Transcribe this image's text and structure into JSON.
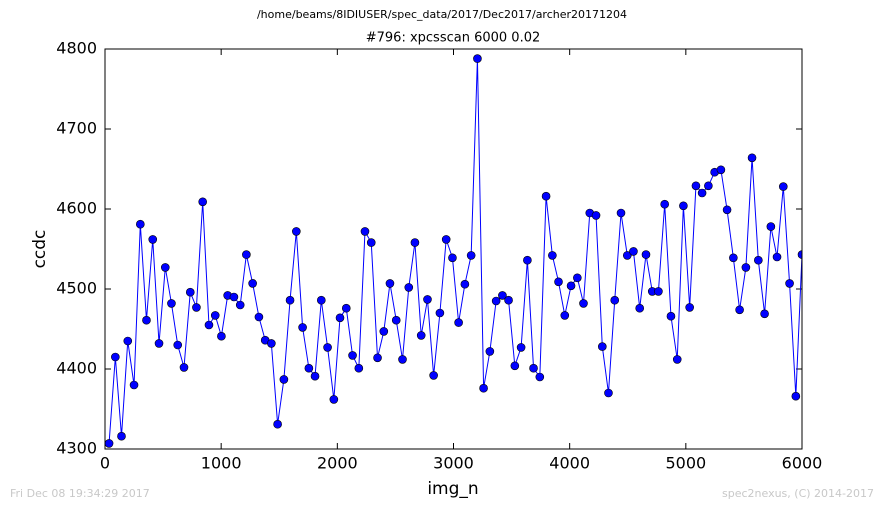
{
  "chart_data": {
    "type": "line",
    "suptitle": "/home/beams/8IDIUSER/spec_data/2017/Dec2017/archer20171204",
    "title": "#796: xpcsscan 6000 0.02",
    "x_label": "img_n",
    "y_label": "ccdc",
    "footer_left": "Fri Dec 08 19:34:29 2017",
    "footer_right": "spec2nexus, (C) 2014-2017",
    "xlim": [
      0,
      6000
    ],
    "ylim": [
      4300,
      4800
    ],
    "xticks": [
      0,
      1000,
      2000,
      3000,
      4000,
      5000,
      6000
    ],
    "yticks": [
      4300,
      4400,
      4500,
      4600,
      4700,
      4800
    ],
    "color": "#0000ff",
    "x": [
      35,
      89,
      142,
      196,
      250,
      304,
      357,
      411,
      465,
      519,
      572,
      626,
      680,
      734,
      787,
      841,
      895,
      949,
      1002,
      1056,
      1110,
      1164,
      1217,
      1271,
      1325,
      1379,
      1432,
      1486,
      1540,
      1593,
      1647,
      1701,
      1755,
      1808,
      1862,
      1916,
      1970,
      2023,
      2077,
      2131,
      2185,
      2238,
      2292,
      2346,
      2400,
      2453,
      2507,
      2561,
      2615,
      2668,
      2722,
      2776,
      2829,
      2883,
      2937,
      2991,
      3044,
      3098,
      3152,
      3206,
      3259,
      3313,
      3367,
      3421,
      3474,
      3528,
      3582,
      3636,
      3689,
      3743,
      3797,
      3851,
      3904,
      3958,
      4012,
      4066,
      4119,
      4173,
      4227,
      4281,
      4334,
      4388,
      4442,
      4496,
      4549,
      4603,
      4657,
      4711,
      4764,
      4818,
      4872,
      4926,
      4979,
      5033,
      5087,
      5140,
      5194,
      5248,
      5302,
      5355,
      5409,
      5463,
      5517,
      5570,
      5624,
      5678,
      5732,
      5785,
      5839,
      5893,
      5947,
      6000
    ],
    "values": [
      4307,
      4415,
      4316,
      4435,
      4380,
      4581,
      4461,
      4562,
      4432,
      4527,
      4482,
      4430,
      4402,
      4496,
      4477,
      4609,
      4455,
      4467,
      4441,
      4492,
      4490,
      4480,
      4543,
      4507,
      4465,
      4436,
      4432,
      4331,
      4387,
      4486,
      4572,
      4452,
      4401,
      4391,
      4486,
      4427,
      4362,
      4464,
      4476,
      4417,
      4401,
      4572,
      4558,
      4414,
      4447,
      4507,
      4461,
      4412,
      4502,
      4558,
      4442,
      4487,
      4392,
      4470,
      4562,
      4539,
      4458,
      4506,
      4542,
      4788,
      4376,
      4422,
      4485,
      4492,
      4486,
      4404,
      4427,
      4536,
      4401,
      4390,
      4616,
      4542,
      4509,
      4467,
      4504,
      4514,
      4482,
      4595,
      4592,
      4428,
      4370,
      4486,
      4595,
      4542,
      4547,
      4476,
      4543,
      4497,
      4497,
      4606,
      4466,
      4412,
      4604,
      4477,
      4629,
      4620,
      4629,
      4646,
      4649,
      4599,
      4539,
      4474,
      4527,
      4664,
      4536,
      4469,
      4578,
      4540,
      4628,
      4507,
      4366,
      4543
    ]
  }
}
